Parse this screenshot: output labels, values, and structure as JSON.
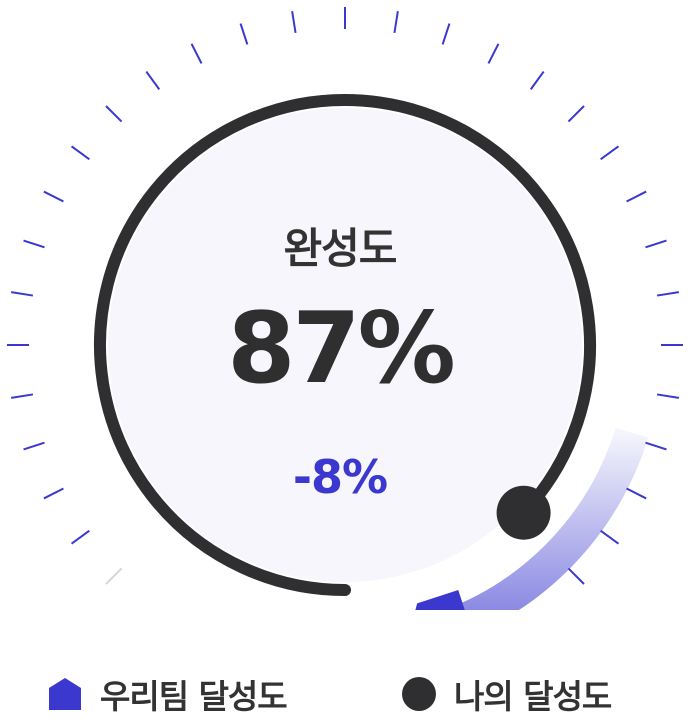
{
  "gauge": {
    "label": "완성도",
    "my_value_percent": 87,
    "team_value_percent": 95,
    "value_text": "87%",
    "diff_text": "-8%"
  },
  "legend": {
    "team_label": "우리팀 달성도",
    "my_label": "나의 달성도"
  },
  "colors": {
    "accent": "#3a38cf",
    "dark": "#2f2f31",
    "center_fill": "#f6f6fc"
  },
  "icons": {
    "team_marker": "blue-pentagon-icon",
    "my_marker": "dark-dot-icon"
  }
}
